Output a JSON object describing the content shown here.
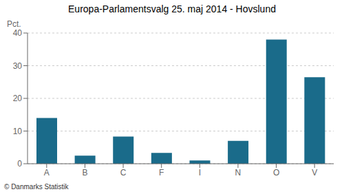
{
  "chart_data": {
    "type": "bar",
    "title": "Europa-Parlamentsvalg 25. maj 2014 - Hovslund",
    "categories": [
      "A",
      "B",
      "C",
      "F",
      "I",
      "N",
      "O",
      "V"
    ],
    "values": [
      14.0,
      2.5,
      8.3,
      3.3,
      1.0,
      7.0,
      38.0,
      26.5
    ],
    "color": "#1a6b8a",
    "ylabel": "Pct.",
    "ylim": [
      0,
      40
    ],
    "yticks": [
      0,
      10,
      20,
      30,
      40
    ],
    "grid": true,
    "footer": "© Danmarks Statistik"
  }
}
